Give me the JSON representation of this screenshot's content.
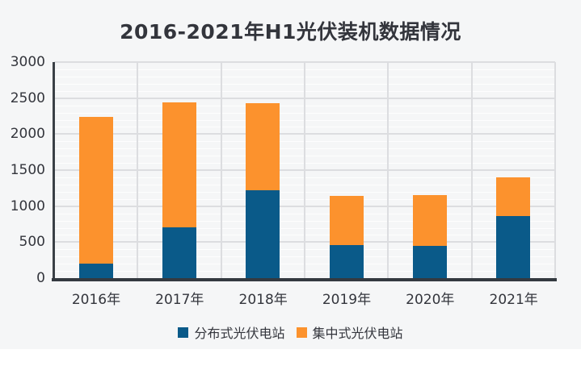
{
  "chart_data": {
    "type": "bar",
    "stacked": true,
    "title": "2016-2021年H1光伏装机数据情况",
    "categories": [
      "2016年",
      "2017年",
      "2018年",
      "2019年",
      "2020年",
      "2021年"
    ],
    "series": [
      {
        "name": "分布式光伏电站",
        "color": "#0a5a89",
        "values": [
          206,
          711,
          1224,
          458,
          443,
          865
        ]
      },
      {
        "name": "集中式光伏电站",
        "color": "#fc922d",
        "values": [
          2037,
          1729,
          1206,
          682,
          708,
          536
        ]
      }
    ],
    "totals": [
      2243,
      2440,
      2430,
      1140,
      1151,
      1401
    ],
    "xlabel": "",
    "ylabel": "",
    "ylim": [
      0,
      3000
    ],
    "y_ticks": [
      0,
      500,
      1000,
      1500,
      2000,
      2500,
      3000
    ],
    "y_minor_step": 100,
    "grid": true,
    "legend_position": "bottom"
  },
  "colors": {
    "canvas_background": "#f5f6f7",
    "page_background": "#ffffff",
    "text": "#33353c",
    "axis": "#343a40",
    "major_gridline": "#dcdde0",
    "series_distributed": "#0a5a89",
    "series_centralized": "#fc922d"
  }
}
